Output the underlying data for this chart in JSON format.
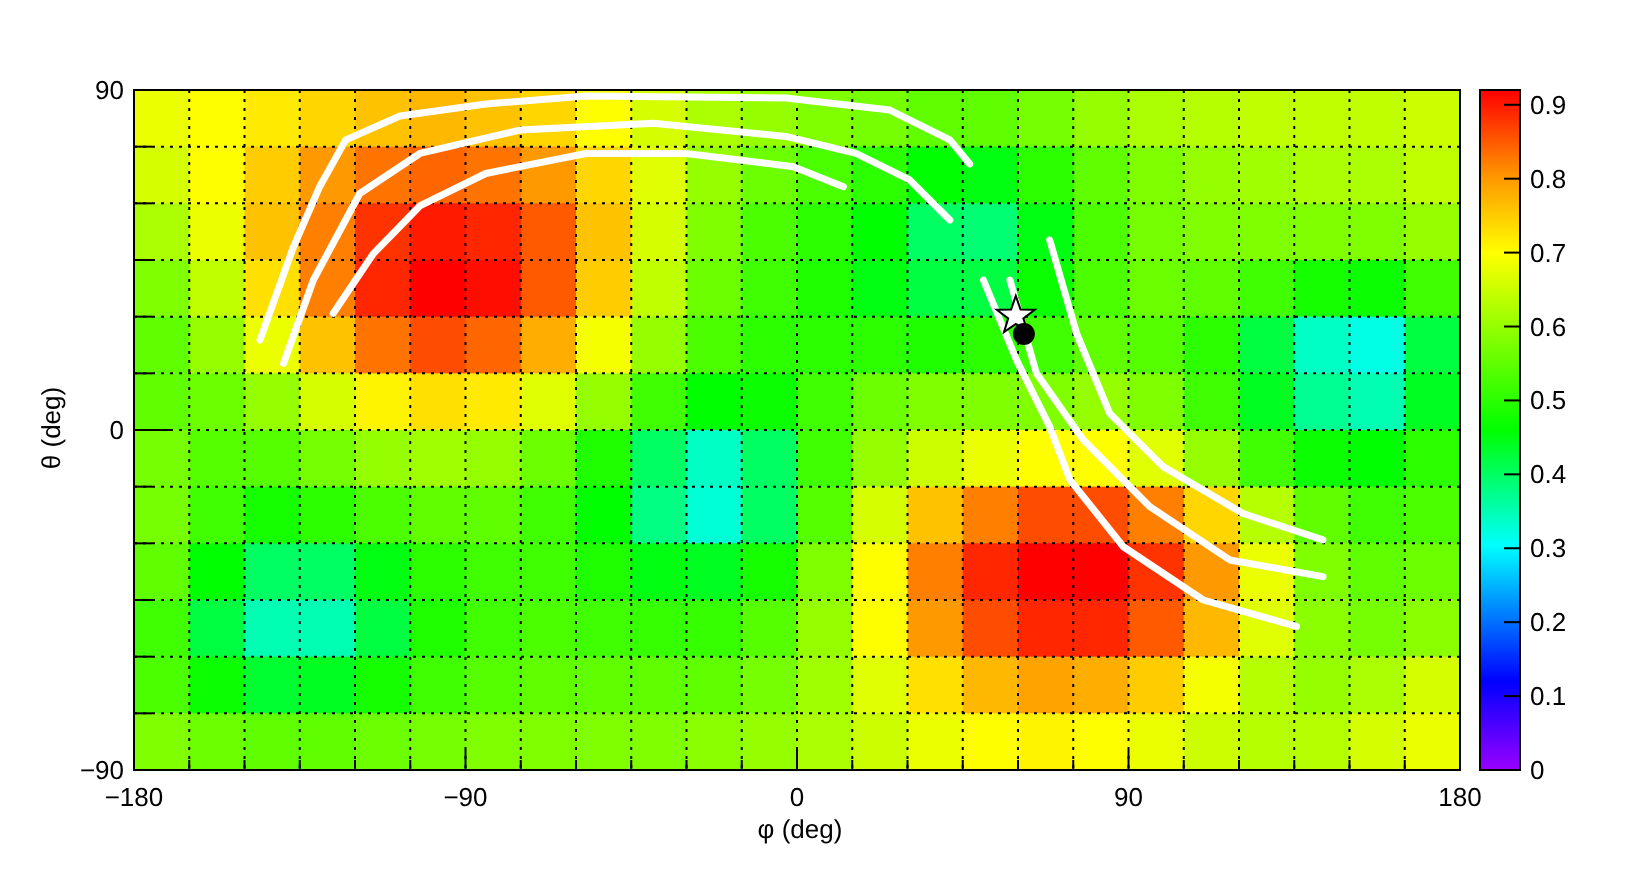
{
  "chart_data": {
    "type": "heatmap",
    "xlabel": "φ (deg)",
    "ylabel": "θ (deg)",
    "xlim": [
      -180,
      180
    ],
    "xticks": [
      -180,
      {
        "value": -165,
        "label": null
      },
      {
        "value": -150,
        "label": null
      },
      {
        "value": -135,
        "label": null
      },
      {
        "value": -120,
        "label": null
      },
      {
        "value": -105,
        "label": null
      },
      -90,
      {
        "value": -75,
        "label": null
      },
      {
        "value": -60,
        "label": null
      },
      {
        "value": -45,
        "label": null
      },
      {
        "value": -30,
        "label": null
      },
      {
        "value": -15,
        "label": null
      },
      0,
      {
        "value": 15,
        "label": null
      },
      {
        "value": 30,
        "label": null
      },
      {
        "value": 45,
        "label": null
      },
      {
        "value": 60,
        "label": null
      },
      {
        "value": 75,
        "label": null
      },
      90,
      {
        "value": 105,
        "label": null
      },
      {
        "value": 120,
        "label": null
      },
      {
        "value": 135,
        "label": null
      },
      {
        "value": 150,
        "label": null
      },
      {
        "value": 165,
        "label": null
      },
      180
    ],
    "ylim": [
      -90,
      90
    ],
    "yticks": [
      -90,
      {
        "value": -75,
        "label": null
      },
      {
        "value": -60,
        "label": null
      },
      {
        "value": -45,
        "label": null
      },
      {
        "value": -30,
        "label": null
      },
      {
        "value": -15,
        "label": null
      },
      0,
      {
        "value": 15,
        "label": null
      },
      {
        "value": 30,
        "label": null
      },
      {
        "value": 45,
        "label": null
      },
      {
        "value": 60,
        "label": null
      },
      {
        "value": 75,
        "label": null
      },
      90
    ],
    "grid": true,
    "clim": [
      0,
      0.92
    ],
    "cticks": [
      0,
      0.1,
      0.2,
      0.3,
      0.4,
      0.5,
      0.6,
      0.7,
      0.8,
      0.9
    ],
    "cells": [
      [
        0.68,
        0.7,
        0.72,
        0.74,
        0.76,
        0.77,
        0.76,
        0.74,
        0.7,
        0.66,
        0.62,
        0.6,
        0.58,
        0.57,
        0.55,
        0.55,
        0.57,
        0.6,
        0.62,
        0.63,
        0.64,
        0.64,
        0.64,
        0.65
      ],
      [
        0.66,
        0.7,
        0.75,
        0.8,
        0.83,
        0.84,
        0.83,
        0.8,
        0.74,
        0.67,
        0.6,
        0.56,
        0.53,
        0.5,
        0.46,
        0.45,
        0.5,
        0.55,
        0.58,
        0.6,
        0.61,
        0.62,
        0.62,
        0.64
      ],
      [
        0.62,
        0.68,
        0.76,
        0.82,
        0.88,
        0.9,
        0.89,
        0.85,
        0.76,
        0.66,
        0.58,
        0.53,
        0.5,
        0.46,
        0.4,
        0.39,
        0.45,
        0.53,
        0.57,
        0.58,
        0.58,
        0.58,
        0.58,
        0.6
      ],
      [
        0.58,
        0.64,
        0.73,
        0.82,
        0.89,
        0.92,
        0.91,
        0.85,
        0.75,
        0.64,
        0.56,
        0.52,
        0.49,
        0.45,
        0.42,
        0.42,
        0.47,
        0.53,
        0.56,
        0.55,
        0.52,
        0.48,
        0.47,
        0.52
      ],
      [
        0.55,
        0.6,
        0.68,
        0.76,
        0.83,
        0.86,
        0.84,
        0.78,
        0.69,
        0.6,
        0.53,
        0.5,
        0.5,
        0.5,
        0.49,
        0.5,
        0.52,
        0.55,
        0.54,
        0.5,
        0.42,
        0.34,
        0.32,
        0.42
      ],
      [
        0.55,
        0.56,
        0.6,
        0.66,
        0.71,
        0.73,
        0.72,
        0.67,
        0.6,
        0.52,
        0.46,
        0.47,
        0.52,
        0.56,
        0.58,
        0.58,
        0.58,
        0.6,
        0.58,
        0.52,
        0.44,
        0.37,
        0.35,
        0.44
      ],
      [
        0.57,
        0.54,
        0.54,
        0.57,
        0.6,
        0.61,
        0.6,
        0.56,
        0.49,
        0.4,
        0.34,
        0.4,
        0.52,
        0.6,
        0.65,
        0.68,
        0.7,
        0.7,
        0.67,
        0.6,
        0.52,
        0.47,
        0.46,
        0.5
      ],
      [
        0.57,
        0.52,
        0.48,
        0.5,
        0.53,
        0.55,
        0.55,
        0.52,
        0.46,
        0.38,
        0.33,
        0.4,
        0.54,
        0.66,
        0.76,
        0.82,
        0.86,
        0.86,
        0.82,
        0.74,
        0.63,
        0.55,
        0.52,
        0.53
      ],
      [
        0.55,
        0.46,
        0.4,
        0.4,
        0.45,
        0.5,
        0.52,
        0.52,
        0.49,
        0.45,
        0.44,
        0.48,
        0.58,
        0.7,
        0.82,
        0.89,
        0.92,
        0.92,
        0.88,
        0.8,
        0.68,
        0.58,
        0.55,
        0.56
      ],
      [
        0.52,
        0.42,
        0.35,
        0.35,
        0.42,
        0.49,
        0.52,
        0.53,
        0.52,
        0.51,
        0.51,
        0.54,
        0.6,
        0.7,
        0.8,
        0.86,
        0.89,
        0.89,
        0.85,
        0.77,
        0.67,
        0.59,
        0.57,
        0.59
      ],
      [
        0.53,
        0.47,
        0.43,
        0.44,
        0.48,
        0.52,
        0.54,
        0.55,
        0.55,
        0.55,
        0.55,
        0.57,
        0.61,
        0.67,
        0.73,
        0.77,
        0.79,
        0.78,
        0.75,
        0.69,
        0.63,
        0.6,
        0.62,
        0.66
      ],
      [
        0.58,
        0.56,
        0.55,
        0.55,
        0.56,
        0.57,
        0.58,
        0.58,
        0.58,
        0.58,
        0.59,
        0.6,
        0.62,
        0.65,
        0.68,
        0.7,
        0.71,
        0.7,
        0.68,
        0.65,
        0.63,
        0.63,
        0.66,
        0.68
      ]
    ],
    "series": [
      {
        "type": "line",
        "color": "#ffffff",
        "x": [
          -145.8,
          -136.7,
          -129.5,
          -122.5,
          -107.8,
          -84.5,
          -57.3,
          -3.0,
          25.2,
          41.5,
          46.9
        ],
        "values": [
          23.8,
          48.5,
          64.6,
          76.8,
          83.1,
          86.3,
          88.4,
          87.9,
          84.7,
          76.8,
          70.4
        ]
      },
      {
        "type": "line",
        "color": "#ffffff",
        "x": [
          -139.4,
          -131.3,
          -118.7,
          -102.4,
          -75.2,
          -39.0,
          -3.0,
          16.0,
          30.6,
          41.5
        ],
        "values": [
          17.6,
          39.7,
          62.6,
          73.2,
          79.4,
          81.2,
          77.7,
          73.2,
          66.2,
          55.6
        ]
      },
      {
        "type": "line",
        "color": "#ffffff",
        "x": [
          -125.9,
          -115.0,
          -102.4,
          -84.5,
          -57.3,
          -30.2,
          -1.0,
          12.6
        ],
        "values": [
          30.9,
          46.7,
          59.3,
          67.9,
          73.2,
          73.2,
          69.7,
          64.4
        ]
      },
      {
        "type": "line",
        "color": "#ffffff",
        "x": [
          68.6,
          75.9,
          84.9,
          99.4,
          121.1,
          142.8
        ],
        "values": [
          50.3,
          25.6,
          4.4,
          -9.7,
          -22.1,
          -29.1
        ]
      },
      {
        "type": "line",
        "color": "#ffffff",
        "x": [
          57.8,
          65.0,
          77.7,
          95.8,
          117.5,
          142.8
        ],
        "values": [
          39.7,
          15.0,
          -2.6,
          -20.3,
          -34.4,
          -38.8
        ]
      },
      {
        "type": "line",
        "color": "#ffffff",
        "x": [
          50.6,
          59.6,
          68.6,
          74.1,
          88.6,
          110.3,
          135.6
        ],
        "values": [
          39.7,
          18.5,
          0.9,
          -13.2,
          -30.9,
          -45.0,
          -52.0
        ]
      },
      {
        "type": "scatter",
        "marker": "star",
        "color": "#ffffff",
        "x": [
          59.4
        ],
        "values": [
          30.2
        ]
      },
      {
        "type": "scatter",
        "marker": "circle",
        "color": "#000000",
        "x": [
          61.6
        ],
        "values": [
          25.4
        ]
      }
    ]
  }
}
